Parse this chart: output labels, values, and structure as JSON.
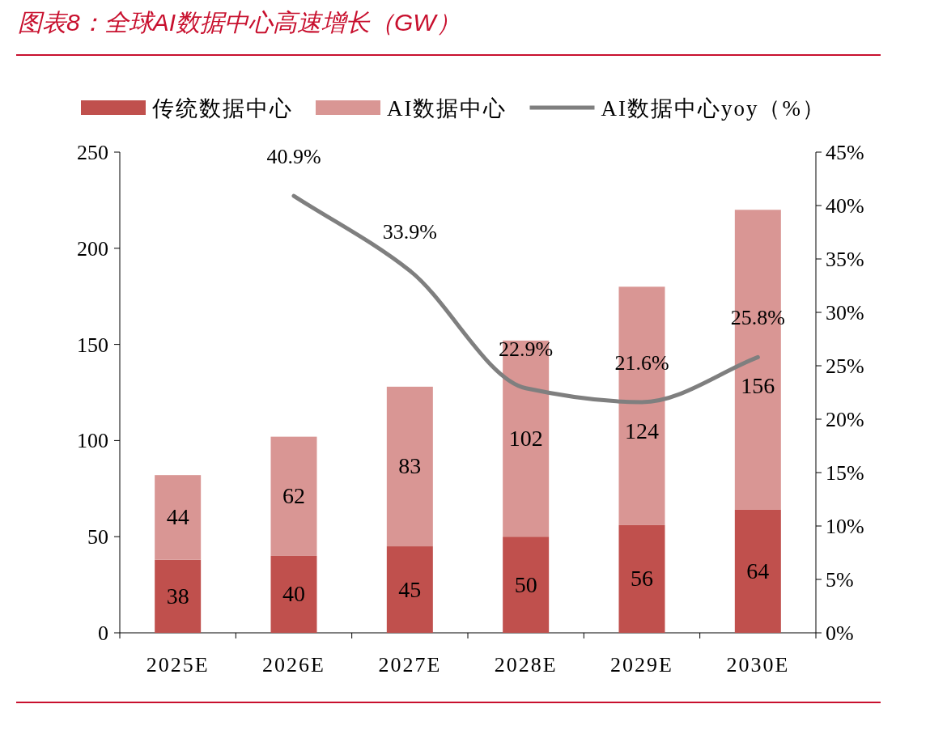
{
  "chart_data": {
    "type": "bar",
    "stacked": true,
    "title": "图表8：全球AI数据中心高速增长（GW）",
    "categories": [
      "2025E",
      "2026E",
      "2027E",
      "2028E",
      "2029E",
      "2030E"
    ],
    "series": [
      {
        "name": "传统数据中心",
        "color": "#c0504d",
        "values": [
          38,
          40,
          45,
          50,
          56,
          64
        ]
      },
      {
        "name": "AI数据中心",
        "color": "#d99694",
        "values": [
          44,
          62,
          83,
          102,
          124,
          156
        ]
      },
      {
        "name": "AI数据中心yoy（%）",
        "type": "line",
        "axis": "y2",
        "color": "#7f7f7f",
        "values": [
          null,
          40.9,
          33.9,
          22.9,
          21.6,
          25.8
        ],
        "value_labels": [
          null,
          "40.9%",
          "33.9%",
          "22.9%",
          "21.6%",
          "25.8%"
        ]
      }
    ],
    "ylim": [
      0,
      250
    ],
    "yticks": [
      0,
      50,
      100,
      150,
      200,
      250
    ],
    "y2lim": [
      0,
      45
    ],
    "y2ticks": [
      {
        "value": 0,
        "label": "0%"
      },
      {
        "value": 5,
        "label": "5%"
      },
      {
        "value": 10,
        "label": "10%"
      },
      {
        "value": 15,
        "label": "15%"
      },
      {
        "value": 20,
        "label": "20%"
      },
      {
        "value": 25,
        "label": "25%"
      },
      {
        "value": 30,
        "label": "30%"
      },
      {
        "value": 35,
        "label": "35%"
      },
      {
        "value": 40,
        "label": "40%"
      },
      {
        "value": 45,
        "label": "45%"
      }
    ],
    "data_labels": true,
    "legend": "top",
    "grid": false
  }
}
